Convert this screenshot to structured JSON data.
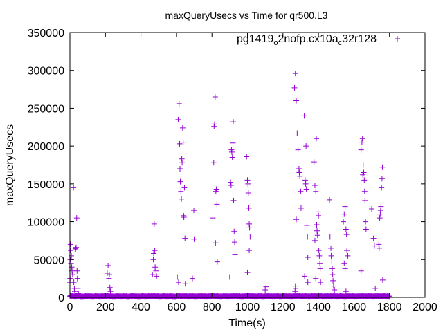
{
  "chart_data": {
    "type": "scatter",
    "title": "maxQueryUsecs vs Time for qr500.L3",
    "xlabel": "Time(s)",
    "ylabel": "maxQueryUsecs",
    "xlim": [
      0,
      2000
    ],
    "ylim": [
      0,
      350000
    ],
    "xticks": [
      "0",
      "200",
      "400",
      "600",
      "800",
      "1000",
      "1200",
      "1400",
      "1600",
      "1800",
      "2000"
    ],
    "yticks": [
      "0",
      "50000",
      "100000",
      "150000",
      "200000",
      "250000",
      "300000",
      "350000"
    ],
    "grid": false,
    "legend_position": "top-right",
    "series": [
      {
        "name": "pg1419_o2nofp.cx10a_c32r128",
        "color": "#9400d3",
        "marker": "plus",
        "points": [
          [
            0,
            20000
          ],
          [
            1,
            25000
          ],
          [
            2,
            50000
          ],
          [
            3,
            70000
          ],
          [
            4,
            62000
          ],
          [
            6,
            45000
          ],
          [
            8,
            55000
          ],
          [
            10,
            40000
          ],
          [
            12,
            35000
          ],
          [
            15,
            30000
          ],
          [
            20,
            145000
          ],
          [
            22,
            20000
          ],
          [
            25,
            12000
          ],
          [
            27,
            8000
          ],
          [
            30,
            65000
          ],
          [
            32,
            64000
          ],
          [
            35,
            66000
          ],
          [
            38,
            105000
          ],
          [
            40,
            35000
          ],
          [
            42,
            25000
          ],
          [
            45,
            12000
          ],
          [
            48,
            5000
          ],
          [
            210,
            32000
          ],
          [
            215,
            42000
          ],
          [
            220,
            25000
          ],
          [
            222,
            30000
          ],
          [
            225,
            13000
          ],
          [
            228,
            8000
          ],
          [
            465,
            30000
          ],
          [
            470,
            50000
          ],
          [
            472,
            58000
          ],
          [
            475,
            97000
          ],
          [
            478,
            62000
          ],
          [
            480,
            40000
          ],
          [
            485,
            35000
          ],
          [
            488,
            28000
          ],
          [
            605,
            27000
          ],
          [
            610,
            235000
          ],
          [
            612,
            20000
          ],
          [
            615,
            256000
          ],
          [
            618,
            203000
          ],
          [
            620,
            170000
          ],
          [
            622,
            153000
          ],
          [
            625,
            140000
          ],
          [
            628,
            130000
          ],
          [
            630,
            183000
          ],
          [
            632,
            178000
          ],
          [
            635,
            224000
          ],
          [
            638,
            205000
          ],
          [
            640,
            108000
          ],
          [
            642,
            106000
          ],
          [
            645,
            145000
          ],
          [
            648,
            78000
          ],
          [
            650,
            18000
          ],
          [
            690,
            25000
          ],
          [
            698,
            115000
          ],
          [
            700,
            77000
          ],
          [
            805,
            105000
          ],
          [
            810,
            178000
          ],
          [
            812,
            226000
          ],
          [
            815,
            229000
          ],
          [
            818,
            265000
          ],
          [
            820,
            72000
          ],
          [
            822,
            140000
          ],
          [
            825,
            143000
          ],
          [
            828,
            123000
          ],
          [
            830,
            47000
          ],
          [
            900,
            27000
          ],
          [
            905,
            152000
          ],
          [
            908,
            148000
          ],
          [
            910,
            195000
          ],
          [
            912,
            192000
          ],
          [
            915,
            185000
          ],
          [
            918,
            204000
          ],
          [
            920,
            232000
          ],
          [
            922,
            128000
          ],
          [
            925,
            87000
          ],
          [
            928,
            73000
          ],
          [
            930,
            57000
          ],
          [
            995,
            186000
          ],
          [
            1000,
            155000
          ],
          [
            1000,
            33000
          ],
          [
            1003,
            150000
          ],
          [
            1005,
            138000
          ],
          [
            1008,
            118000
          ],
          [
            1010,
            97000
          ],
          [
            1010,
            62000
          ],
          [
            1012,
            92000
          ],
          [
            1015,
            80000
          ],
          [
            1100,
            10000
          ],
          [
            1105,
            14000
          ],
          [
            1265,
            277000
          ],
          [
            1268,
            8000
          ],
          [
            1270,
            296000
          ],
          [
            1270,
            15000
          ],
          [
            1272,
            12000
          ],
          [
            1275,
            260000
          ],
          [
            1275,
            103000
          ],
          [
            1280,
            217000
          ],
          [
            1285,
            195000
          ],
          [
            1290,
            170000
          ],
          [
            1292,
            165000
          ],
          [
            1295,
            160000
          ],
          [
            1300,
            140000
          ],
          [
            1302,
            118000
          ],
          [
            1320,
            240000
          ],
          [
            1322,
            28000
          ],
          [
            1325,
            155000
          ],
          [
            1328,
            150000
          ],
          [
            1330,
            200000
          ],
          [
            1332,
            143000
          ],
          [
            1335,
            95000
          ],
          [
            1338,
            80000
          ],
          [
            1340,
            53000
          ],
          [
            1340,
            20000
          ],
          [
            1375,
            179000
          ],
          [
            1380,
            148000
          ],
          [
            1380,
            75000
          ],
          [
            1385,
            140000
          ],
          [
            1385,
            25000
          ],
          [
            1388,
            210000
          ],
          [
            1390,
            96000
          ],
          [
            1392,
            88000
          ],
          [
            1395,
            82000
          ],
          [
            1398,
            113000
          ],
          [
            1400,
            108000
          ],
          [
            1402,
            62000
          ],
          [
            1405,
            55000
          ],
          [
            1408,
            45000
          ],
          [
            1410,
            38000
          ],
          [
            1412,
            20000
          ],
          [
            1462,
            129000
          ],
          [
            1465,
            80000
          ],
          [
            1470,
            65000
          ],
          [
            1472,
            55000
          ],
          [
            1475,
            48000
          ],
          [
            1478,
            38000
          ],
          [
            1480,
            30000
          ],
          [
            1482,
            22000
          ],
          [
            1485,
            15000
          ],
          [
            1490,
            10000
          ],
          [
            1540,
            100000
          ],
          [
            1545,
            110000
          ],
          [
            1545,
            45000
          ],
          [
            1550,
            120000
          ],
          [
            1550,
            38000
          ],
          [
            1555,
            90000
          ],
          [
            1555,
            8000
          ],
          [
            1558,
            83000
          ],
          [
            1560,
            62000
          ],
          [
            1565,
            55000
          ],
          [
            1640,
            195000
          ],
          [
            1640,
            35000
          ],
          [
            1645,
            205000
          ],
          [
            1648,
            210000
          ],
          [
            1650,
            162000
          ],
          [
            1652,
            175000
          ],
          [
            1655,
            165000
          ],
          [
            1658,
            155000
          ],
          [
            1660,
            140000
          ],
          [
            1662,
            128000
          ],
          [
            1665,
            100000
          ],
          [
            1668,
            90000
          ],
          [
            1700,
            117000
          ],
          [
            1710,
            78000
          ],
          [
            1715,
            68000
          ],
          [
            1720,
            12000
          ],
          [
            1740,
            70000
          ],
          [
            1742,
            65000
          ],
          [
            1745,
            105000
          ],
          [
            1748,
            110000
          ],
          [
            1750,
            115000
          ],
          [
            1752,
            120000
          ],
          [
            1755,
            145000
          ],
          [
            1758,
            157000
          ],
          [
            1760,
            172000
          ],
          [
            1762,
            23000
          ]
        ],
        "baseline_points": [
          [
            0,
            1500
          ],
          [
            20,
            800
          ],
          [
            40,
            1200
          ],
          [
            60,
            600
          ],
          [
            80,
            900
          ],
          [
            100,
            1100
          ],
          [
            120,
            700
          ],
          [
            140,
            1300
          ],
          [
            160,
            800
          ],
          [
            180,
            1000
          ],
          [
            200,
            1400
          ],
          [
            220,
            900
          ],
          [
            240,
            700
          ],
          [
            260,
            1100
          ],
          [
            280,
            800
          ],
          [
            300,
            1000
          ],
          [
            320,
            600
          ],
          [
            340,
            1200
          ],
          [
            360,
            900
          ],
          [
            380,
            700
          ],
          [
            400,
            1100
          ],
          [
            420,
            800
          ],
          [
            440,
            1000
          ],
          [
            460,
            1300
          ],
          [
            480,
            900
          ],
          [
            500,
            700
          ],
          [
            520,
            1100
          ],
          [
            540,
            800
          ],
          [
            560,
            1000
          ],
          [
            580,
            600
          ],
          [
            600,
            1500
          ],
          [
            620,
            900
          ],
          [
            640,
            1200
          ],
          [
            660,
            800
          ],
          [
            680,
            1000
          ],
          [
            700,
            700
          ],
          [
            720,
            1100
          ],
          [
            740,
            900
          ],
          [
            760,
            800
          ],
          [
            780,
            1000
          ],
          [
            800,
            1200
          ],
          [
            820,
            900
          ],
          [
            840,
            700
          ],
          [
            860,
            1100
          ],
          [
            880,
            800
          ],
          [
            900,
            1000
          ],
          [
            920,
            1300
          ],
          [
            940,
            900
          ],
          [
            960,
            700
          ],
          [
            980,
            1100
          ],
          [
            1000,
            1200
          ],
          [
            1020,
            900
          ],
          [
            1040,
            800
          ],
          [
            1060,
            1000
          ],
          [
            1080,
            700
          ],
          [
            1100,
            1100
          ],
          [
            1120,
            900
          ],
          [
            1140,
            800
          ],
          [
            1160,
            1000
          ],
          [
            1180,
            700
          ],
          [
            1200,
            1100
          ],
          [
            1220,
            900
          ],
          [
            1240,
            800
          ],
          [
            1260,
            1200
          ],
          [
            1280,
            1500
          ],
          [
            1300,
            900
          ],
          [
            1320,
            1000
          ],
          [
            1340,
            800
          ],
          [
            1360,
            1100
          ],
          [
            1380,
            900
          ],
          [
            1400,
            1200
          ],
          [
            1420,
            800
          ],
          [
            1440,
            1000
          ],
          [
            1460,
            900
          ],
          [
            1480,
            1300
          ],
          [
            1500,
            800
          ],
          [
            1520,
            1000
          ],
          [
            1540,
            700
          ],
          [
            1560,
            1100
          ],
          [
            1580,
            900
          ],
          [
            1600,
            800
          ],
          [
            1620,
            1000
          ],
          [
            1640,
            1200
          ],
          [
            1660,
            900
          ],
          [
            1680,
            1100
          ],
          [
            1700,
            800
          ],
          [
            1720,
            1000
          ],
          [
            1740,
            900
          ],
          [
            1760,
            1100
          ],
          [
            1780,
            800
          ],
          [
            1800,
            700
          ]
        ]
      }
    ]
  }
}
